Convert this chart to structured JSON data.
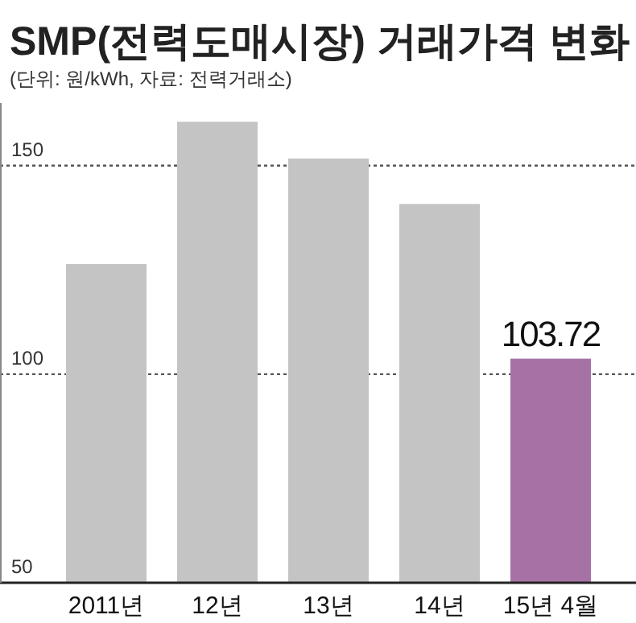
{
  "chart_data": {
    "type": "bar",
    "title": "SMP(전력도매시장) 거래가격 변화",
    "subtitle": "(단위: 원/kWh, 자료: 전력거래소)",
    "categories": [
      "2011년",
      "12년",
      "13년",
      "14년",
      "15년 4월"
    ],
    "values": [
      126.4,
      160.5,
      151.7,
      140.8,
      103.72
    ],
    "colors": [
      "#c4c4c4",
      "#c4c4c4",
      "#c4c4c4",
      "#c4c4c4",
      "#a672a6"
    ],
    "value_labels": [
      null,
      null,
      null,
      null,
      "103.72"
    ],
    "ylim": [
      50,
      165
    ],
    "yticks": [
      50,
      100,
      150
    ],
    "grid": "y"
  }
}
